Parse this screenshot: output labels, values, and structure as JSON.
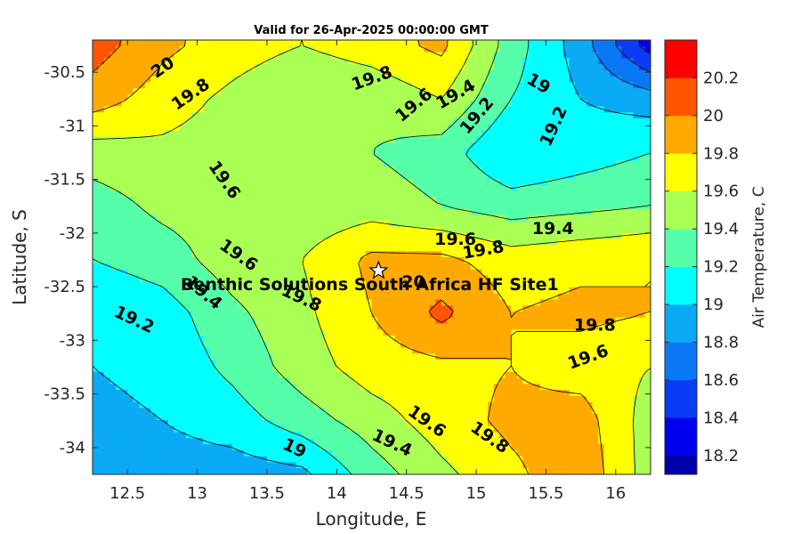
{
  "chart_data": {
    "type": "contour",
    "title": "Valid for 26-Apr-2025 00:00:00 GMT",
    "xlabel": "Longitude, E",
    "ylabel": "Latitude, S",
    "colorbar_label": "Air Temperature, C",
    "xlim": [
      12.25,
      16.25
    ],
    "ylim": [
      -34.25,
      -30.2
    ],
    "x_ticks": [
      12.5,
      13,
      13.5,
      14,
      14.5,
      15,
      15.5,
      16
    ],
    "y_ticks": [
      -30.5,
      -31,
      -31.5,
      -32,
      -32.5,
      -33,
      -33.5,
      -34
    ],
    "x_tick_labels": [
      "12.5",
      "13",
      "13.5",
      "14",
      "14.5",
      "15",
      "15.5",
      "16"
    ],
    "y_tick_labels": [
      "-30.5",
      "-31",
      "-31.5",
      "-32",
      "-32.5",
      "-33",
      "-33.5",
      "-34"
    ],
    "colorbar": {
      "min": 18.1,
      "max": 20.4,
      "levels": [
        18.1,
        18.2,
        18.4,
        18.6,
        18.8,
        19.0,
        19.2,
        19.4,
        19.6,
        19.8,
        20.0,
        20.2,
        20.4
      ],
      "colors": [
        "#0000aa",
        "#0000ee",
        "#0a3cf5",
        "#0a78f5",
        "#0aaaf5",
        "#00ffff",
        "#55ffaa",
        "#aaff55",
        "#ffff00",
        "#ffaa00",
        "#ff5500",
        "#ff0000",
        "#aa0000"
      ],
      "tick_values": [
        18.2,
        18.4,
        18.6,
        18.8,
        19.0,
        19.2,
        19.4,
        19.6,
        19.8,
        20.0,
        20.2
      ],
      "tick_labels": [
        "18.2",
        "18.4",
        "18.6",
        "18.8",
        "19",
        "19.2",
        "19.4",
        "19.6",
        "19.8",
        "20",
        "20.2"
      ]
    },
    "grid": {
      "lon": [
        12.25,
        12.75,
        13.25,
        13.75,
        14.25,
        14.75,
        15.25,
        15.75,
        16.25
      ],
      "lat": [
        -30.25,
        -30.75,
        -31.25,
        -31.75,
        -32.25,
        -32.75,
        -33.25,
        -33.75,
        -34.25
      ],
      "values": [
        [
          20.1,
          19.85,
          19.7,
          19.6,
          19.7,
          19.85,
          19.3,
          18.9,
          18.3
        ],
        [
          19.9,
          19.7,
          19.55,
          19.4,
          19.45,
          19.6,
          19.2,
          19.0,
          18.9
        ],
        [
          19.5,
          19.55,
          19.5,
          19.4,
          19.4,
          19.3,
          19.0,
          19.1,
          19.2
        ],
        [
          19.3,
          19.45,
          19.5,
          19.45,
          19.5,
          19.4,
          19.3,
          19.35,
          19.4
        ],
        [
          19.2,
          19.3,
          19.5,
          19.6,
          19.85,
          19.85,
          19.7,
          19.75,
          19.8
        ],
        [
          19.0,
          19.1,
          19.35,
          19.55,
          19.8,
          20.05,
          19.8,
          19.85,
          19.8
        ],
        [
          19.0,
          19.05,
          19.25,
          19.5,
          19.7,
          19.75,
          19.8,
          19.7,
          19.6
        ],
        [
          18.95,
          19.0,
          19.1,
          19.3,
          19.5,
          19.7,
          19.85,
          19.9,
          19.5
        ],
        [
          18.85,
          18.9,
          18.9,
          18.95,
          19.3,
          19.55,
          19.75,
          19.95,
          19.5
        ]
      ]
    },
    "contour_labels": [
      {
        "text": "20",
        "lon": 12.75,
        "lat": -30.45,
        "angle": -35
      },
      {
        "text": "19.8",
        "lon": 12.95,
        "lat": -30.7,
        "angle": -35
      },
      {
        "text": "19.8",
        "lon": 14.25,
        "lat": -30.55,
        "angle": -20
      },
      {
        "text": "19.6",
        "lon": 14.55,
        "lat": -30.8,
        "angle": -40
      },
      {
        "text": "19.4",
        "lon": 14.85,
        "lat": -30.7,
        "angle": -30
      },
      {
        "text": "19.2",
        "lon": 15.0,
        "lat": -30.9,
        "angle": -50
      },
      {
        "text": "19",
        "lon": 15.45,
        "lat": -30.6,
        "angle": 30
      },
      {
        "text": "19.2",
        "lon": 15.55,
        "lat": -31.0,
        "angle": -65
      },
      {
        "text": "19.6",
        "lon": 13.2,
        "lat": -31.5,
        "angle": 55
      },
      {
        "text": "19.4",
        "lon": 15.55,
        "lat": -31.95,
        "angle": 0
      },
      {
        "text": "19.6",
        "lon": 13.3,
        "lat": -32.2,
        "angle": 35
      },
      {
        "text": "19.6",
        "lon": 14.85,
        "lat": -32.05,
        "angle": 0
      },
      {
        "text": "19.8",
        "lon": 15.05,
        "lat": -32.15,
        "angle": -10
      },
      {
        "text": "20",
        "lon": 14.55,
        "lat": -32.45,
        "angle": 0
      },
      {
        "text": "19.4",
        "lon": 13.05,
        "lat": -32.55,
        "angle": 40
      },
      {
        "text": "19.8",
        "lon": 13.75,
        "lat": -32.6,
        "angle": 25
      },
      {
        "text": "19.2",
        "lon": 12.55,
        "lat": -32.8,
        "angle": 25
      },
      {
        "text": "19.8",
        "lon": 15.85,
        "lat": -32.85,
        "angle": 0
      },
      {
        "text": "19.6",
        "lon": 15.8,
        "lat": -33.15,
        "angle": -20
      },
      {
        "text": "19.6",
        "lon": 14.65,
        "lat": -33.75,
        "angle": 35
      },
      {
        "text": "19.8",
        "lon": 15.1,
        "lat": -33.9,
        "angle": 35
      },
      {
        "text": "19",
        "lon": 13.7,
        "lat": -34.0,
        "angle": 25
      },
      {
        "text": "19.4",
        "lon": 14.4,
        "lat": -33.95,
        "angle": 25
      }
    ],
    "site": {
      "name": "Benthic Solutions South Africa HF Site1",
      "lon": 14.3,
      "lat": -32.35,
      "marker": "white-star"
    }
  }
}
